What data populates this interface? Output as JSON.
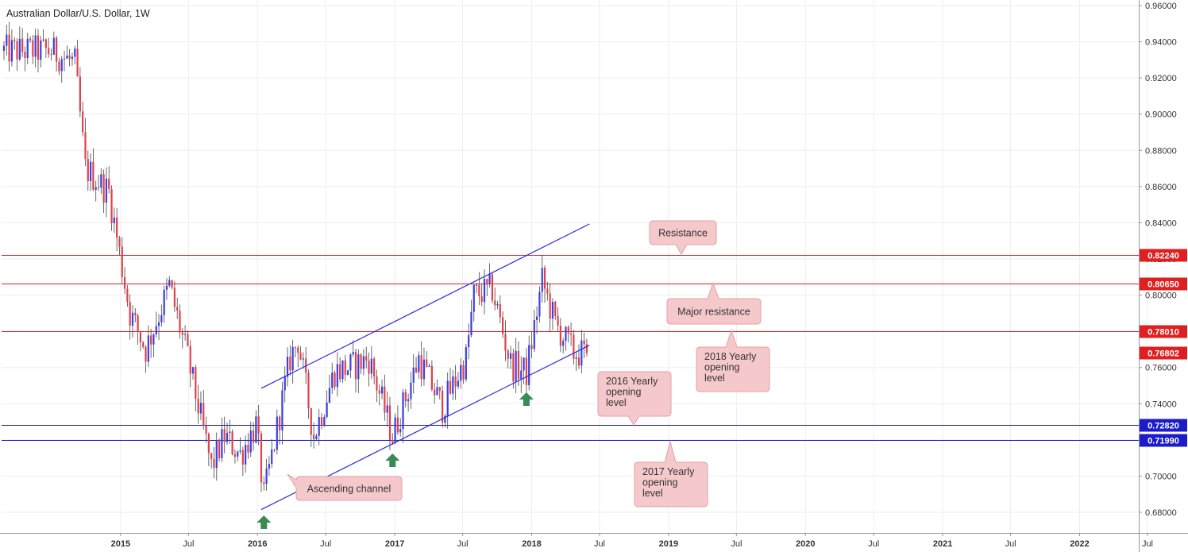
{
  "chart_data": {
    "type": "candlestick",
    "title": "Australian Dollar/U.S. Dollar, 1W",
    "ylim": [
      0.672,
      0.962
    ],
    "y_ticks": [
      "0.96000",
      "0.94000",
      "0.92000",
      "0.90000",
      "0.88000",
      "0.86000",
      "0.84000",
      "0.82000",
      "0.80000",
      "0.78000",
      "0.76000",
      "0.74000",
      "0.72000",
      "0.70000",
      "0.68000"
    ],
    "x_ticks": [
      "2015",
      "Jul",
      "2016",
      "Jul",
      "2017",
      "Jul",
      "2018",
      "Jul",
      "2019",
      "Jul",
      "2020",
      "Jul",
      "2021",
      "Jul",
      "2022",
      "Jul"
    ],
    "x_start": "2014-02-24",
    "colors": {
      "up": "#3b3ee0",
      "down": "#e0404a",
      "resistance_line": "#e02020",
      "support_line": "#1c1cc8",
      "channel_line": "#2a2ae0",
      "callout_fill": "#f5c9cb",
      "callout_border": "#e5a0a4",
      "arrow": "#3a8a55",
      "grid": "#eeeeee"
    },
    "price_levels": [
      {
        "label": "0.82240",
        "value": 0.8224,
        "color": "#e02020"
      },
      {
        "label": "0.80650",
        "value": 0.8065,
        "color": "#e02020"
      },
      {
        "label": "0.78010",
        "value": 0.7801,
        "color": "#e02020"
      },
      {
        "label": "0.72820",
        "value": 0.7282,
        "color": "#1c1cc8"
      },
      {
        "label": "0.71990",
        "value": 0.7199,
        "color": "#1c1cc8"
      }
    ],
    "current_price": {
      "label": "0.76802",
      "value": 0.76802
    },
    "channel": {
      "upper": [
        {
          "date": "2016-01-11",
          "price": 0.7485
        },
        {
          "date": "2018-06-04",
          "price": 0.8393
        }
      ],
      "lower": [
        {
          "date": "2016-01-11",
          "price": 0.6815
        },
        {
          "date": "2018-06-04",
          "price": 0.7723
        }
      ]
    },
    "annotations": [
      {
        "text": [
          "Resistance"
        ],
        "pointer": "bottom"
      },
      {
        "text": [
          "Major resistance"
        ],
        "pointer": "top"
      },
      {
        "text": [
          "2018 Yearly",
          "opening",
          "level"
        ],
        "pointer": "top"
      },
      {
        "text": [
          "2016 Yearly",
          "opening",
          "level"
        ],
        "pointer": "bottom"
      },
      {
        "text": [
          "2017 Yearly",
          "opening",
          "level"
        ],
        "pointer": "top"
      },
      {
        "text": [
          "Ascending channel"
        ],
        "pointer": "left"
      }
    ],
    "swing_low_markers": [
      "2016-01-18",
      "2016-12-26",
      "2017-12-18"
    ],
    "anchors": [
      {
        "date": "2014-02-24",
        "price": 0.935
      },
      {
        "date": "2014-06-30",
        "price": 0.935
      },
      {
        "date": "2014-09-01",
        "price": 0.928
      },
      {
        "date": "2014-09-29",
        "price": 0.87
      },
      {
        "date": "2014-12-01",
        "price": 0.857
      },
      {
        "date": "2015-01-26",
        "price": 0.79
      },
      {
        "date": "2015-03-09",
        "price": 0.77
      },
      {
        "date": "2015-05-11",
        "price": 0.805
      },
      {
        "date": "2015-06-29",
        "price": 0.765
      },
      {
        "date": "2015-08-31",
        "price": 0.705
      },
      {
        "date": "2015-10-05",
        "price": 0.722
      },
      {
        "date": "2015-11-16",
        "price": 0.712
      },
      {
        "date": "2015-12-28",
        "price": 0.728
      },
      {
        "date": "2016-01-18",
        "price": 0.688
      },
      {
        "date": "2016-03-28",
        "price": 0.765
      },
      {
        "date": "2016-04-18",
        "price": 0.775
      },
      {
        "date": "2016-05-30",
        "price": 0.722
      },
      {
        "date": "2016-07-25",
        "price": 0.758
      },
      {
        "date": "2016-09-05",
        "price": 0.76
      },
      {
        "date": "2016-10-24",
        "price": 0.765
      },
      {
        "date": "2016-12-26",
        "price": 0.722
      },
      {
        "date": "2017-03-06",
        "price": 0.765
      },
      {
        "date": "2017-05-08",
        "price": 0.738
      },
      {
        "date": "2017-07-10",
        "price": 0.765
      },
      {
        "date": "2017-07-31",
        "price": 0.8
      },
      {
        "date": "2017-09-18",
        "price": 0.803
      },
      {
        "date": "2017-11-06",
        "price": 0.762
      },
      {
        "date": "2017-12-18",
        "price": 0.757
      },
      {
        "date": "2018-01-29",
        "price": 0.808
      },
      {
        "date": "2018-03-05",
        "price": 0.784
      },
      {
        "date": "2018-04-23",
        "price": 0.768
      },
      {
        "date": "2018-05-28",
        "price": 0.768
      }
    ]
  }
}
